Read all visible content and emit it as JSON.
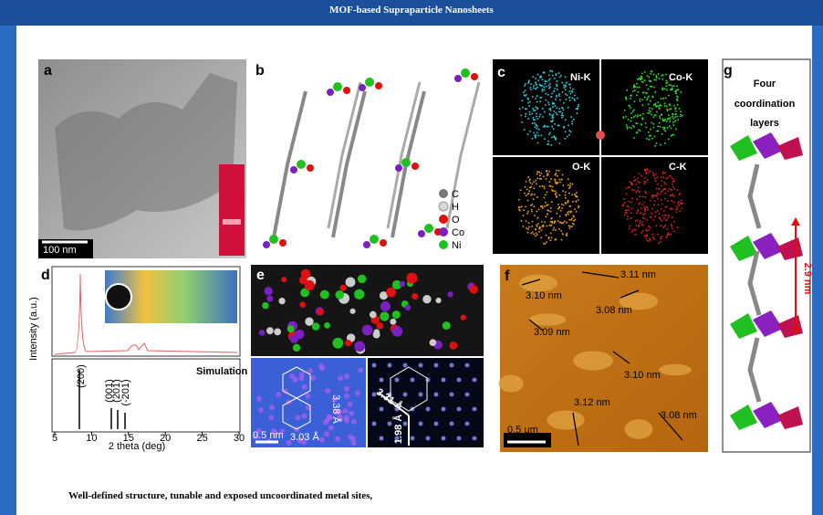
{
  "header": {
    "title": "MOF-based Supraparticle Nanosheets"
  },
  "panels": {
    "a": {
      "label": "a",
      "scale_bar": "100 nm"
    },
    "b": {
      "label": "b",
      "legend": [
        "C",
        "H",
        "O",
        "Co",
        "Ni"
      ]
    },
    "c": {
      "label": "c",
      "maps": [
        "Ni-K",
        "Co-K",
        "O-K",
        "C-K"
      ]
    },
    "d": {
      "label": "d",
      "y_label": "Intensity (a.u.)",
      "x_label": "2 theta (deg)",
      "xticks": [
        5,
        10,
        15,
        20,
        25,
        30
      ],
      "simulation_label": "Simulation",
      "peaks": [
        "(200)",
        "(001)",
        "(201)",
        "(-201)"
      ]
    },
    "e": {
      "label": "e",
      "scale_bar": "0.5 nm",
      "distances": [
        "3.03 Å",
        "3.38 Å",
        "3.31 Å",
        "1.98 Å"
      ]
    },
    "f": {
      "label": "f",
      "heights": [
        "3.11 nm",
        "3.10 nm",
        "3.08 nm",
        "3.09 nm",
        "3.10 nm",
        "3.12 nm",
        "3.08 nm"
      ],
      "scale_bar": "0.5 μm"
    },
    "g": {
      "label": "g",
      "caption": [
        "Four",
        "coordination",
        "layers"
      ],
      "distance": "2.9 nm"
    }
  },
  "footer": {
    "text": "Well-defined structure, tunable and exposed uncoordinated metal sites,"
  }
}
